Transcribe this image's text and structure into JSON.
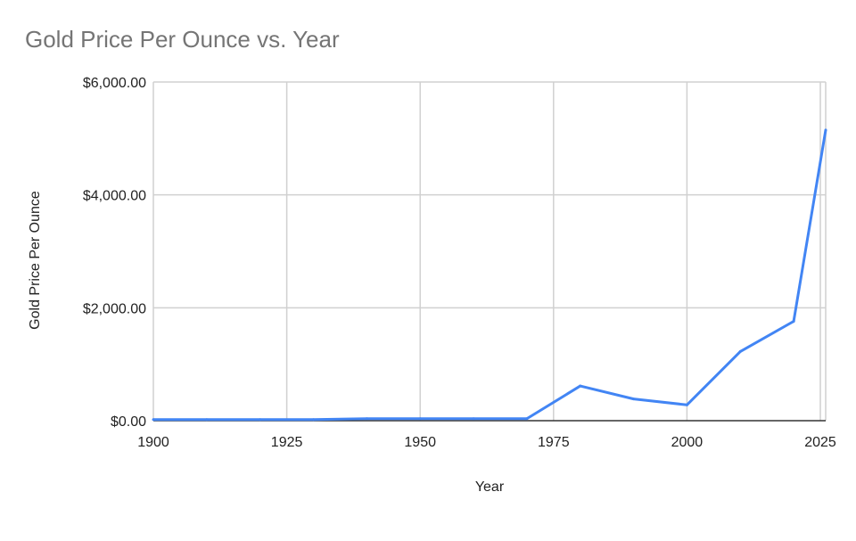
{
  "chart_data": {
    "type": "line",
    "title": "Gold Price Per Ounce vs. Year",
    "xlabel": "Year",
    "ylabel": "Gold Price Per Ounce",
    "xlim": [
      1900,
      2026
    ],
    "ylim": [
      0,
      6000
    ],
    "x_ticks": [
      1900,
      1925,
      1950,
      1975,
      2000,
      2025
    ],
    "x_tick_labels": [
      "1900",
      "1925",
      "1950",
      "1975",
      "2000",
      "2025"
    ],
    "y_ticks": [
      0,
      2000,
      4000,
      6000
    ],
    "y_tick_labels": [
      "$0.00",
      "$2,000.00",
      "$4,000.00",
      "$6,000.00"
    ],
    "grid": true,
    "legend": "none",
    "series": [
      {
        "color": "#4285f4",
        "x": [
          1900,
          1910,
          1920,
          1930,
          1940,
          1950,
          1960,
          1970,
          1980,
          1990,
          2000,
          2010,
          2020,
          2026
        ],
        "y": [
          20,
          20,
          20,
          20,
          35,
          35,
          35,
          36,
          615,
          385,
          280,
          1225,
          1760,
          5150
        ]
      }
    ]
  }
}
